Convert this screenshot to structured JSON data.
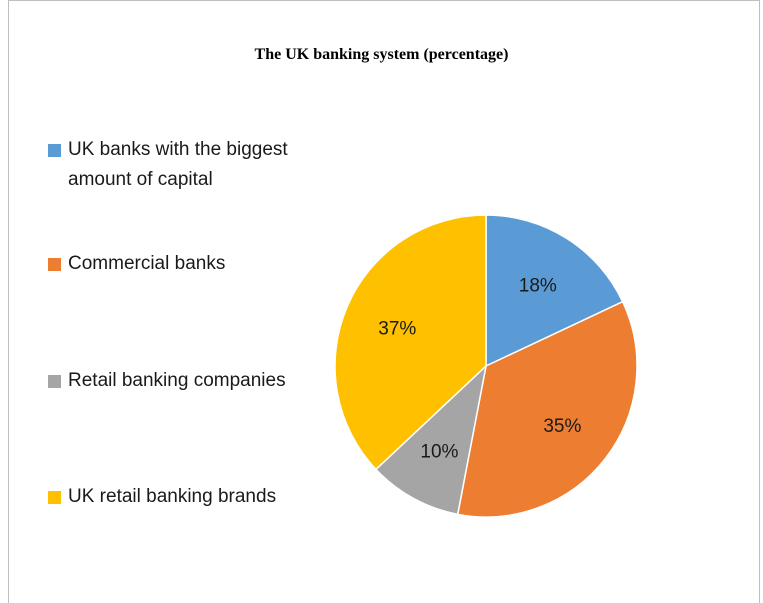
{
  "chart_data": {
    "type": "pie",
    "title": "The UK banking system (percentage)",
    "categories": [
      "UK banks with the biggest amount of capital",
      "Commercial banks",
      "Retail banking companies",
      " UK retail banking brands"
    ],
    "values": [
      18,
      35,
      10,
      37
    ],
    "labels": [
      "18%",
      "35%",
      "10%",
      "37%"
    ],
    "colors": [
      "#5b9bd5",
      "#ed7d31",
      "#a5a5a5",
      "#ffc000"
    ],
    "legend_position": "left"
  }
}
